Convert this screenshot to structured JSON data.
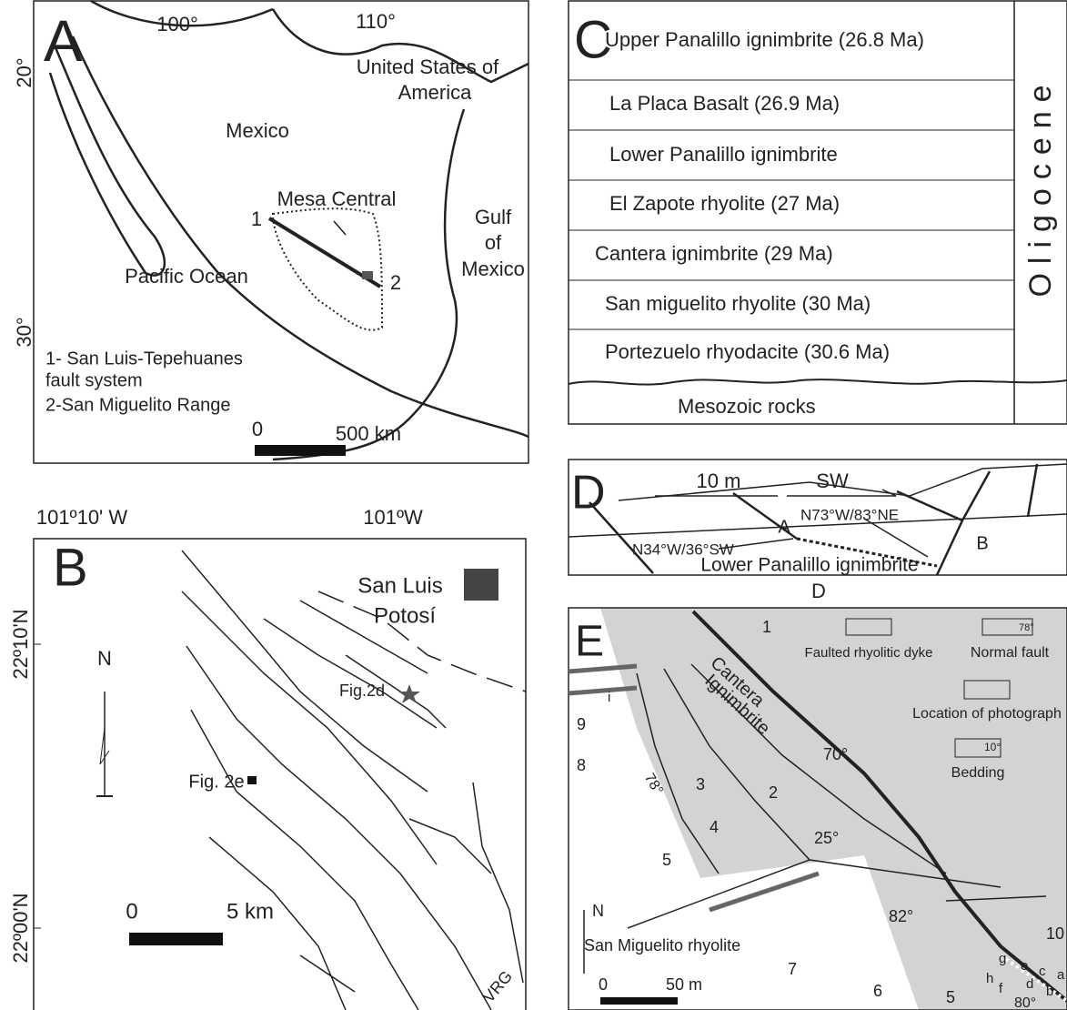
{
  "panel_a": {
    "label": "A",
    "lon_labels": [
      "100°",
      "110°"
    ],
    "lat_labels": [
      "20°",
      "30°"
    ],
    "usa": [
      "United States of",
      "America"
    ],
    "mexico": "Mexico",
    "mesa_central": "Mesa Central",
    "point_1": "1",
    "point_2": "2",
    "gulf": [
      "Gulf",
      "of",
      "Mexico"
    ],
    "pacific": "Pacific Ocean",
    "legend": [
      "1- San Luis-Tepehuanes",
      "fault system",
      "2-San Miguelito Range"
    ],
    "scale": [
      "0",
      "500 km"
    ]
  },
  "panel_b": {
    "label": "B",
    "lon_labels": [
      "101º10' W",
      "101ºW"
    ],
    "lat_labels": [
      "22º10'N",
      "22º00'N"
    ],
    "north": "N",
    "city": [
      "San Luis",
      "Potosí"
    ],
    "fig_2d": "Fig.2d",
    "fig_2e": "Fig. 2e",
    "scale": [
      "0",
      "5 km"
    ],
    "vrg": "VRG"
  },
  "panel_c": {
    "label": "C",
    "units": [
      "Upper Panalillo ignimbrite (26.8 Ma)",
      "La Placa Basalt (26.9 Ma)",
      "Lower Panalillo ignimbrite",
      "El Zapote rhyolite (27 Ma)",
      "Cantera ignimbrite (29 Ma)",
      "San miguelito rhyolite (30 Ma)",
      "Portezuelo rhyodacite (30.6 Ma)"
    ],
    "basement": "Mesozoic rocks",
    "epoch": "Oligocene"
  },
  "panel_d": {
    "label": "D",
    "scale": "10 m",
    "direction": "SW",
    "fault_a": "A",
    "fault_b": "B",
    "attitude_1": "N73°W/83°NE",
    "attitude_2": "N34°W/36°SW",
    "unit": "Lower Panalillo ignimbrite",
    "caption": "D"
  },
  "panel_e": {
    "label": "E",
    "unit_1": [
      "Cantera",
      "Ignimbrite"
    ],
    "unit_2": "San Miguelito rhyolite",
    "legend": [
      "Faulted rhyolitic dyke",
      "Normal fault",
      "78°",
      "Location of photograph",
      "10°",
      "Bedding"
    ],
    "numbers": [
      "1",
      "2",
      "3",
      "4",
      "5",
      "5",
      "6",
      "7",
      "8",
      "9",
      "10"
    ],
    "angles": [
      "78°",
      "70°",
      "25°",
      "82°",
      "80°"
    ],
    "sites": [
      "i",
      "g",
      "e",
      "c",
      "a",
      "h",
      "f",
      "d",
      "b"
    ],
    "north": "N",
    "scale": [
      "0",
      "50 m"
    ]
  }
}
